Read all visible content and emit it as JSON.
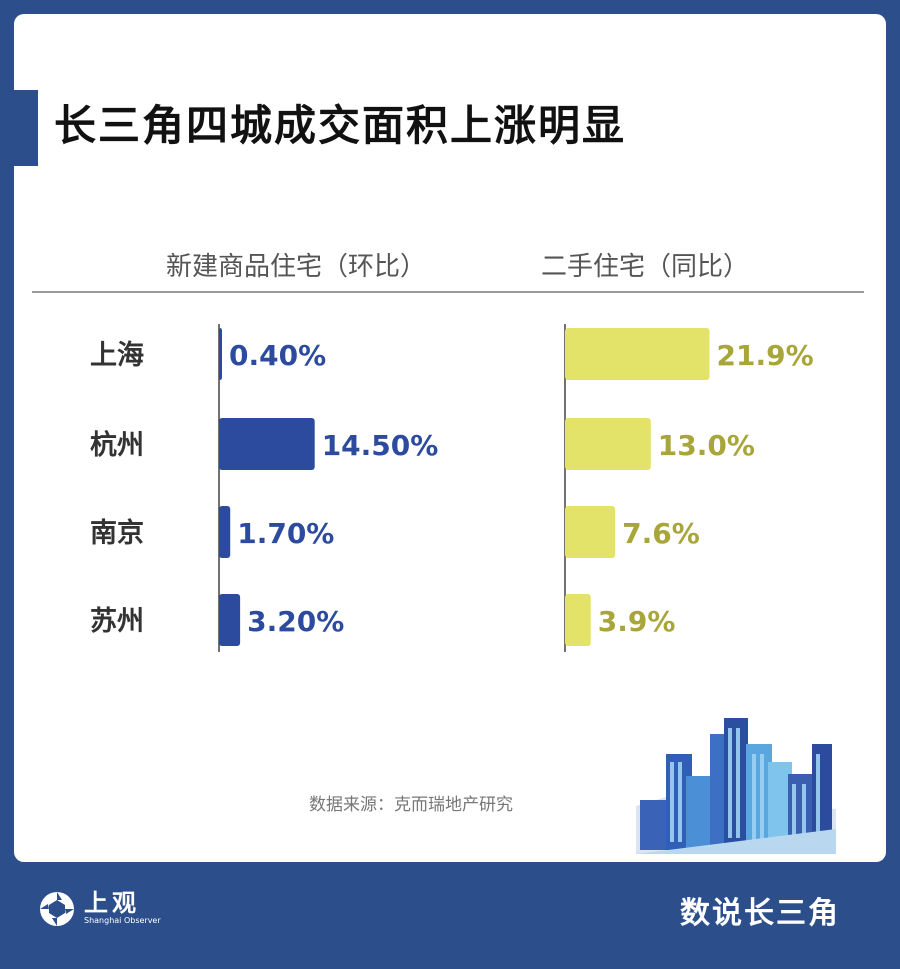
{
  "title": "长三角四城成交面积上涨明显",
  "source": "数据来源：克而瑞地产研究",
  "footer": {
    "logo_cn": "上观",
    "logo_en": "Shanghai Observer",
    "brand": "数说长三角"
  },
  "colors": {
    "background": "#2c4f8c",
    "new_home_bar": "#2c4b9e",
    "second_hand_bar": "#e3e36a",
    "second_hand_label": "#a8a53a"
  },
  "chart_data": {
    "type": "bar",
    "orientation": "horizontal",
    "categories": [
      "上海",
      "杭州",
      "南京",
      "苏州"
    ],
    "series": [
      {
        "name": "新建商品住宅（环比）",
        "values": [
          0.4,
          14.5,
          1.7,
          3.2
        ],
        "labels": [
          "0.40%",
          "14.50%",
          "1.70%",
          "3.20%"
        ]
      },
      {
        "name": "二手住宅（同比）",
        "values": [
          21.9,
          13.0,
          7.6,
          3.9
        ],
        "labels": [
          "21.9%",
          "13.0%",
          "7.6%",
          "3.9%"
        ]
      }
    ]
  }
}
